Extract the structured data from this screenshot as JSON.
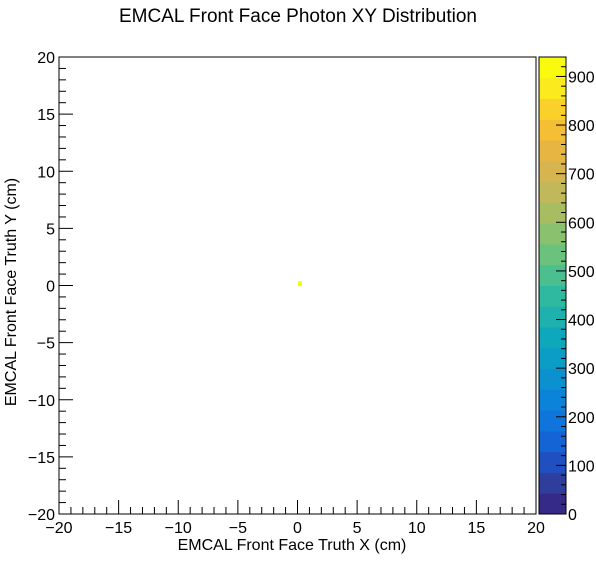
{
  "chart_data": {
    "type": "heatmap",
    "title": "EMCAL Front Face Photon XY Distribution",
    "xlabel": "EMCAL Front Face Truth X (cm)",
    "ylabel": "EMCAL Front Face Truth Y (cm)",
    "xlim": [
      -20,
      20
    ],
    "ylim": [
      -20,
      20
    ],
    "x_ticks": [
      "−20",
      "−15",
      "−10",
      "−5",
      "0",
      "5",
      "10",
      "15",
      "20"
    ],
    "y_ticks": [
      "−20",
      "−15",
      "−10",
      "−5",
      "0",
      "5",
      "10",
      "15",
      "20"
    ],
    "z_range": [
      0,
      940
    ],
    "z_ticks": [
      0,
      100,
      200,
      300,
      400,
      500,
      600,
      700,
      800,
      900
    ],
    "cells": [
      {
        "x": 0.2,
        "y": 0.2,
        "value": 940
      }
    ],
    "colorbar_colors": [
      "#352a87",
      "#2f3e9c",
      "#2050c0",
      "#1464d6",
      "#0f74dc",
      "#0b83d8",
      "#0c91d0",
      "#0b9dc5",
      "#0fa7bb",
      "#1eb1ae",
      "#2fb9a0",
      "#4bbf8e",
      "#6ac27d",
      "#8ac16e",
      "#a7bd62",
      "#c0b85a",
      "#d6b450",
      "#e7b542",
      "#f4be35",
      "#f9d12a",
      "#faea1e",
      "#f9fb0e"
    ],
    "grid": false,
    "legend": "colorbar-right"
  }
}
